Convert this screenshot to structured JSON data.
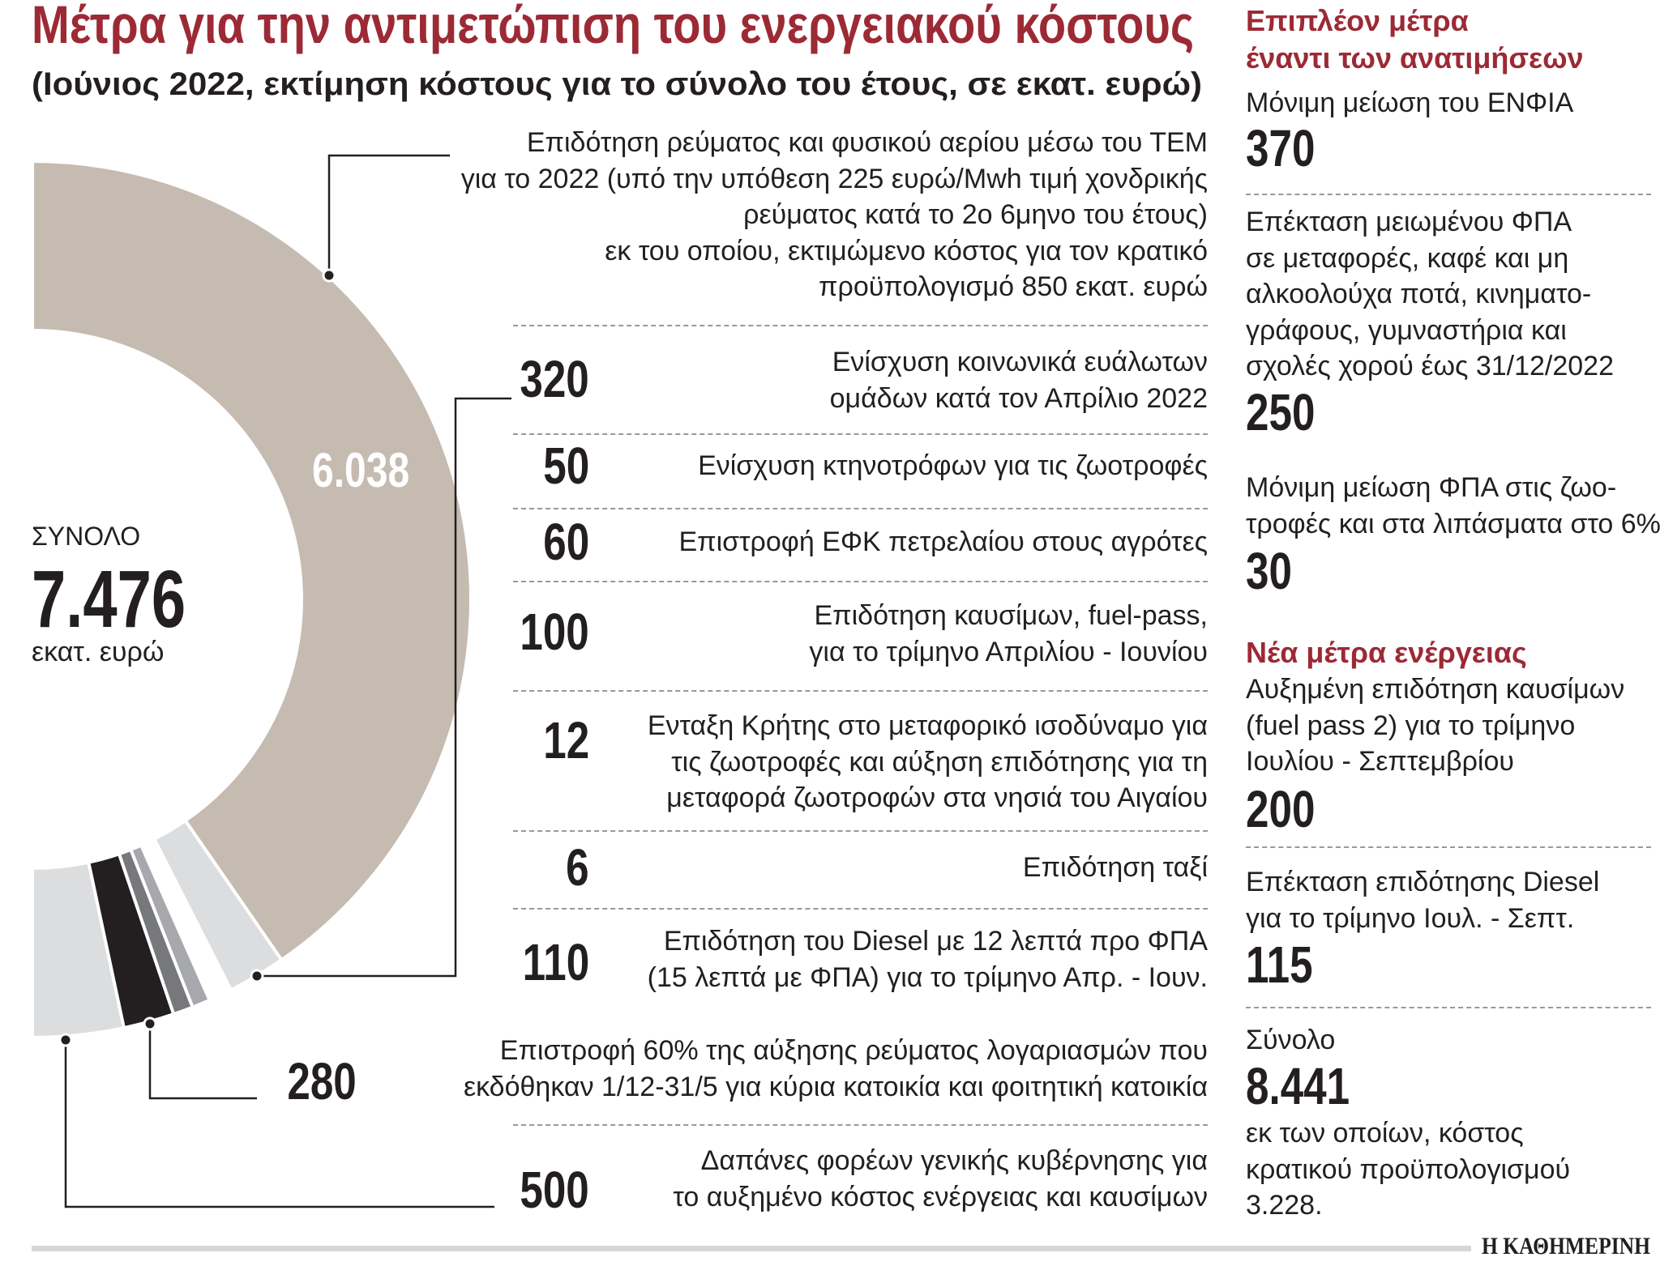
{
  "header": {
    "title": "Μέτρα για την αντιμετώπιση του ενεργειακού κόστους",
    "subtitle": "(Ιούνιος 2022, εκτίμηση κόστους για το σύνολο του έτους, σε εκατ. ευρώ)"
  },
  "chart_data": {
    "type": "pie",
    "variant": "half-donut",
    "total_label": "ΣΥΝΟΛΟ",
    "total_value": "7.476",
    "total_unit": "εκατ. ευρώ",
    "slices": [
      {
        "value": 6038,
        "display": "6.038",
        "color": "#c5bbb1",
        "lines": [
          "Επιδότηση ρεύματος και φυσικού αερίου μέσω του ΤΕΜ",
          "για το 2022 (υπό την υπόθεση 225 ευρώ/Mwh τιμή χονδρικής",
          "ρεύματος κατά το 2ο 6μηνο του έτους)",
          "εκ του οποίου, εκτιμώμενο κόστος για τον κρατικό",
          "προϋπολογισμό 850 εκατ. ευρώ"
        ]
      },
      {
        "value": 320,
        "display": "320",
        "color": "#dcdddf",
        "lines": [
          "Ενίσχυση κοινωνικά ευάλωτων",
          "ομάδων κατά τον Απρίλιο 2022"
        ]
      },
      {
        "value": 50,
        "display": "50",
        "color": "#ffffff",
        "lines": [
          "Ενίσχυση κτηνοτρόφων για τις ζωοτροφές"
        ]
      },
      {
        "value": 60,
        "display": "60",
        "color": "#ffffff",
        "lines": [
          "Επιστροφή ΕΦΚ πετρελαίου στους αγρότες"
        ]
      },
      {
        "value": 12,
        "display": "12",
        "color": "#3a3a3a",
        "lines": [
          "Ενταξη Κρήτης στο μεταφορικό ισοδύναμο για",
          "τις ζωοτροφές και αύξηση επιδότησης για τη",
          "μεταφορά ζωοτροφών στα νησιά του Αιγαίου"
        ]
      },
      {
        "value": 6,
        "display": "6",
        "color": "#555555",
        "lines": [
          "Επιδότηση ταξί"
        ]
      },
      {
        "value": 100,
        "display": "100",
        "color": "#a7a8ab",
        "lines": [
          "Επιδότηση καυσίμων, fuel-pass,",
          "για το τρίμηνο Απριλίου - Ιουνίου"
        ]
      },
      {
        "value": 110,
        "display": "110",
        "color": "#77787c",
        "lines": [
          "Επιδότηση του Diesel με 12 λεπτά προ ΦΠΑ",
          "(15 λεπτά με ΦΠΑ) για το τρίμηνο Απρ. - Ιουν."
        ]
      },
      {
        "value": 280,
        "display": "280",
        "color": "#231f20",
        "lines": [
          "Επιστροφή 60% της αύξησης ρεύματος λογαριασμών που",
          "εκδόθηκαν 1/12-31/5 για κύρια κατοικία και φοιτητική κατοικία"
        ]
      },
      {
        "value": 500,
        "display": "500",
        "color": "#dcdddf",
        "lines": [
          "Δαπάνες φορέων γενικής κυβέρνησης για",
          "το αυξημένο κόστος ενέργειας και καυσίμων"
        ]
      }
    ]
  },
  "sidebar": {
    "heading1": [
      "Επιπλέον μέτρα",
      "έναντι των ανατιμήσεων"
    ],
    "items1": [
      {
        "lines": [
          "Μόνιμη μείωση του ΕΝΦΙΑ"
        ],
        "value": "370"
      },
      {
        "lines": [
          "Επέκταση μειωμένου ΦΠΑ",
          "σε μεταφορές, καφέ και μη",
          "αλκοολούχα ποτά, κινηματο-",
          "γράφους, γυμναστήρια και",
          "σχολές χορού έως 31/12/2022"
        ],
        "value": "250"
      },
      {
        "lines": [
          "Μόνιμη μείωση ΦΠΑ στις ζωο-",
          "τροφές και στα λιπάσματα στο 6%"
        ],
        "value": "30"
      }
    ],
    "heading2": "Νέα μέτρα ενέργειας",
    "items2": [
      {
        "lines": [
          "Αυξημένη επιδότηση καυσίμων",
          "(fuel pass 2) για το τρίμηνο",
          "Ιουλίου - Σεπτεμβρίου"
        ],
        "value": "200"
      },
      {
        "lines": [
          "Επέκταση επιδότησης Diesel",
          "για το τρίμηνο Ιουλ. - Σεπτ."
        ],
        "value": "115"
      }
    ],
    "total_label": "Σύνολο",
    "total_value": "8.441",
    "total_note": [
      "εκ των οποίων, κόστος",
      "κρατικού προϋπολογισμού",
      "3.228."
    ]
  },
  "footer": {
    "brand": "Η ΚΑΘΗΜΕΡΙΝΗ"
  }
}
